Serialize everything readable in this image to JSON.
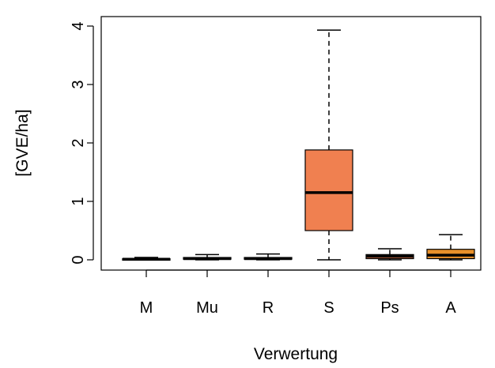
{
  "chart_data": {
    "type": "boxplot",
    "xlabel": "Verwertung",
    "ylabel": "[GVE/ha]",
    "ylim": [
      0,
      4
    ],
    "yticks": [
      0,
      1,
      2,
      3,
      4
    ],
    "yticks_labels": [
      "0",
      "1",
      "2",
      "3",
      "4"
    ],
    "grid": false,
    "categories": [
      "M",
      "Mu",
      "R",
      "S",
      "Ps",
      "A"
    ],
    "boxes": [
      {
        "category": "M",
        "min": 0.0,
        "q1": 0.0,
        "median": 0.01,
        "q3": 0.02,
        "max": 0.04,
        "color": "#f08050"
      },
      {
        "category": "Mu",
        "min": 0.0,
        "q1": 0.01,
        "median": 0.02,
        "q3": 0.04,
        "max": 0.09,
        "color": "#f08050"
      },
      {
        "category": "R",
        "min": 0.0,
        "q1": 0.01,
        "median": 0.02,
        "q3": 0.04,
        "max": 0.1,
        "color": "#f08050"
      },
      {
        "category": "S",
        "min": 0.0,
        "q1": 0.5,
        "median": 1.15,
        "q3": 1.88,
        "max": 3.93,
        "color": "#f08050"
      },
      {
        "category": "Ps",
        "min": 0.0,
        "q1": 0.02,
        "median": 0.06,
        "q3": 0.09,
        "max": 0.19,
        "color": "#f08050"
      },
      {
        "category": "A",
        "min": 0.0,
        "q1": 0.02,
        "median": 0.08,
        "q3": 0.18,
        "max": 0.43,
        "color": "#e8902a"
      }
    ]
  }
}
